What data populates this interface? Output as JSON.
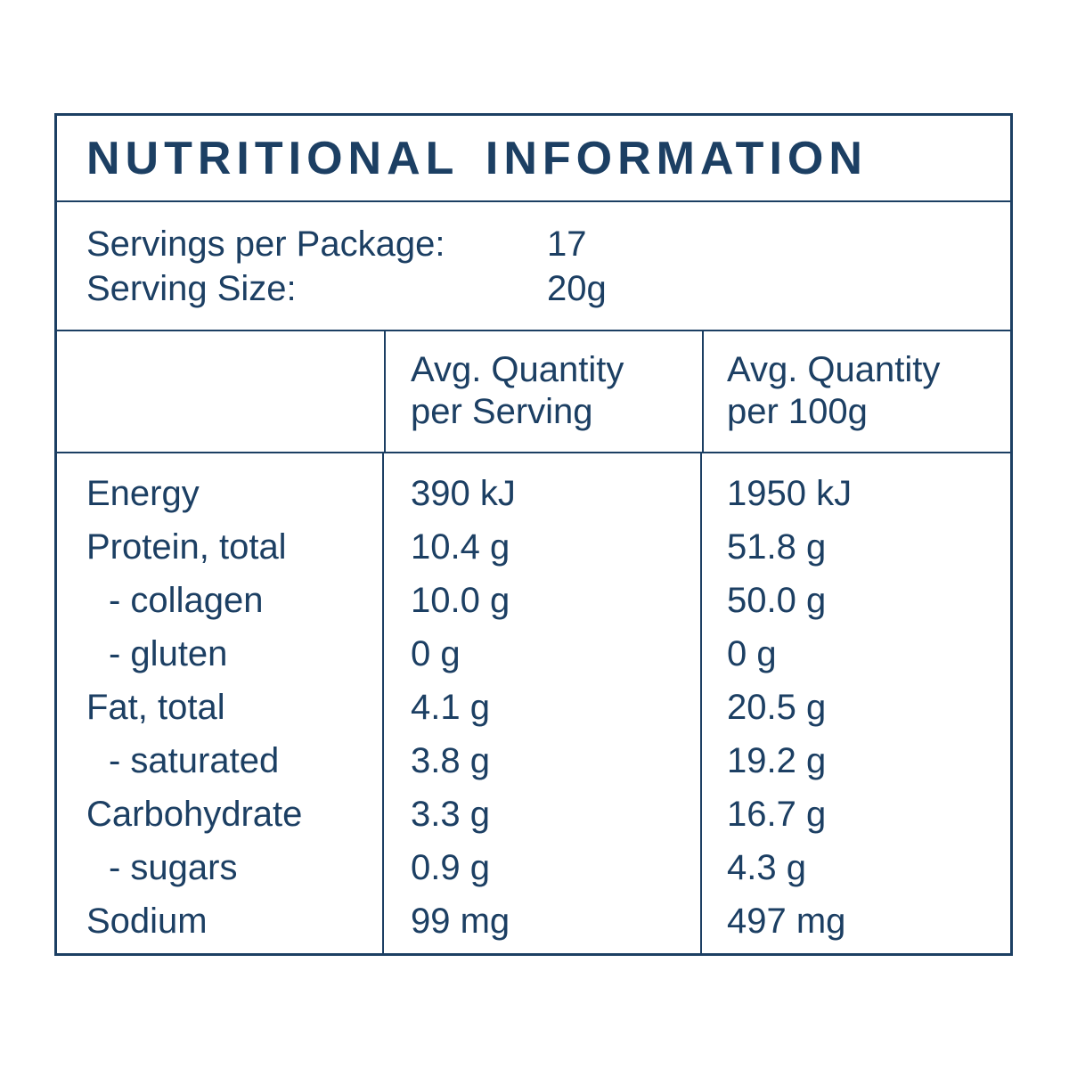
{
  "colors": {
    "text": "#1c3f63",
    "border": "#1c3f63",
    "background": "#ffffff"
  },
  "title": "NUTRITIONAL INFORMATION",
  "serving_info": {
    "servings_per_package_label": "Servings per Package:",
    "servings_per_package_value": "17",
    "serving_size_label": "Serving Size:",
    "serving_size_value": "20g"
  },
  "table": {
    "header_serving_line1": "Avg. Quantity",
    "header_serving_line2": "per Serving",
    "header_100g_line1": "Avg. Quantity",
    "header_100g_line2": "per 100g",
    "rows": [
      {
        "label": "Energy",
        "per_serving": "390 kJ",
        "per_100g": "1950 kJ"
      },
      {
        "label": "Protein, total",
        "per_serving": "10.4 g",
        "per_100g": "51.8 g"
      },
      {
        "label": "- collagen",
        "per_serving": "10.0 g",
        "per_100g": "50.0 g"
      },
      {
        "label": "- gluten",
        "per_serving": "0 g",
        "per_100g": "0 g"
      },
      {
        "label": "Fat, total",
        "per_serving": "4.1 g",
        "per_100g": "20.5 g"
      },
      {
        "label": "- saturated",
        "per_serving": "3.8 g",
        "per_100g": "19.2 g"
      },
      {
        "label": "Carbohydrate",
        "per_serving": "3.3 g",
        "per_100g": "16.7 g"
      },
      {
        "label": "- sugars",
        "per_serving": "0.9 g",
        "per_100g": "4.3 g"
      },
      {
        "label": "Sodium",
        "per_serving": "99 mg",
        "per_100g": "497 mg"
      }
    ]
  }
}
